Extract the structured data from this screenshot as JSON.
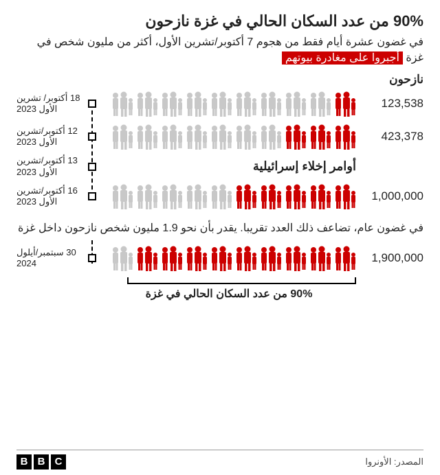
{
  "colors": {
    "red": "#cc0000",
    "grey": "#c8c8c8",
    "text": "#222222",
    "highlight_bg": "#cc0000",
    "highlight_fg": "#ffffff"
  },
  "title": {
    "text": "90% من عدد السكان الحالي في غزة نازحون",
    "fontsize": 22
  },
  "subtitle": {
    "pre": "في غضون عشرة أيام فقط من هجوم 7 أكتوبر/تشرين الأول، أكثر من مليون شخص في غزة ",
    "highlight": "أجبروا على مغادرة بيوتهم",
    "fontsize": 16
  },
  "section_label": {
    "text": "نازحون",
    "fontsize": 17
  },
  "chart": {
    "cluster_count": 10,
    "person_svg_w": 34,
    "person_svg_h": 38,
    "rows": [
      {
        "value": "123,538",
        "date": "18 أكتوبر/ تشرين الأول 2023",
        "red_clusters": 1
      },
      {
        "value": "423,378",
        "date": "12 أكتوبر/تشرين الأول 2023",
        "red_clusters": 3
      },
      {
        "evac_label": "أوامر إخلاء إسرائيلية",
        "date": "13 أكتوبر/تشرين الأول 2023"
      },
      {
        "value": "1,000,000",
        "date": "16 أكتوبر/تشرين الأول 2023",
        "red_clusters": 5
      }
    ],
    "midtext": "في غضون عام، تضاعف ذلك العدد تقريبا. يقدر بأن نحو 1.9 مليون شخص نازحون داخل غزة",
    "final_row": {
      "value": "1,900,000",
      "date": "30 سبتمبر/أيلول 2024",
      "red_clusters": 9
    },
    "bracket_label": "90% من عدد السكان الحالي في غزة"
  },
  "footer": {
    "source": "المصدر: الأونروا",
    "logo": [
      "B",
      "B",
      "C"
    ]
  }
}
